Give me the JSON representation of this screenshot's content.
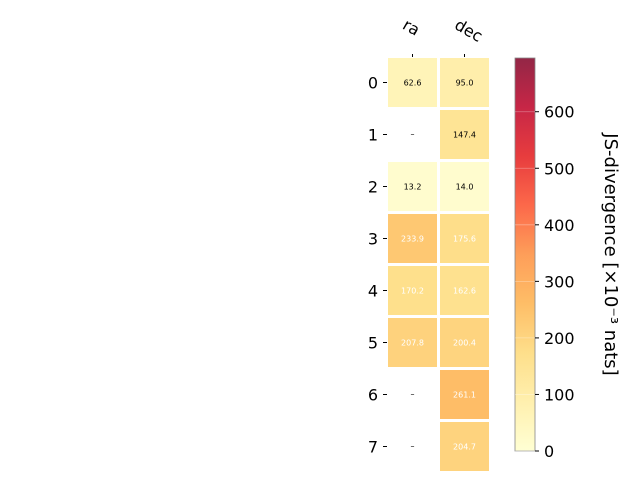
{
  "chart_data": {
    "type": "heatmap",
    "columns": [
      "ra",
      "dec"
    ],
    "rows": [
      "0",
      "1",
      "2",
      "3",
      "4",
      "5",
      "6",
      "7"
    ],
    "values": [
      [
        62.6,
        95.0
      ],
      [
        null,
        147.4
      ],
      [
        13.2,
        14.0
      ],
      [
        233.9,
        175.6
      ],
      [
        170.2,
        162.6
      ],
      [
        207.8,
        200.4
      ],
      [
        null,
        261.1
      ],
      [
        null,
        204.7
      ]
    ],
    "missing_label": "–",
    "color_range": [
      0,
      695
    ],
    "colormap": "YlOrRd",
    "colorbar": {
      "label": "JS-divergence [×10⁻³ nats]",
      "ticks": [
        0,
        100,
        200,
        300,
        400,
        500,
        600
      ]
    }
  }
}
